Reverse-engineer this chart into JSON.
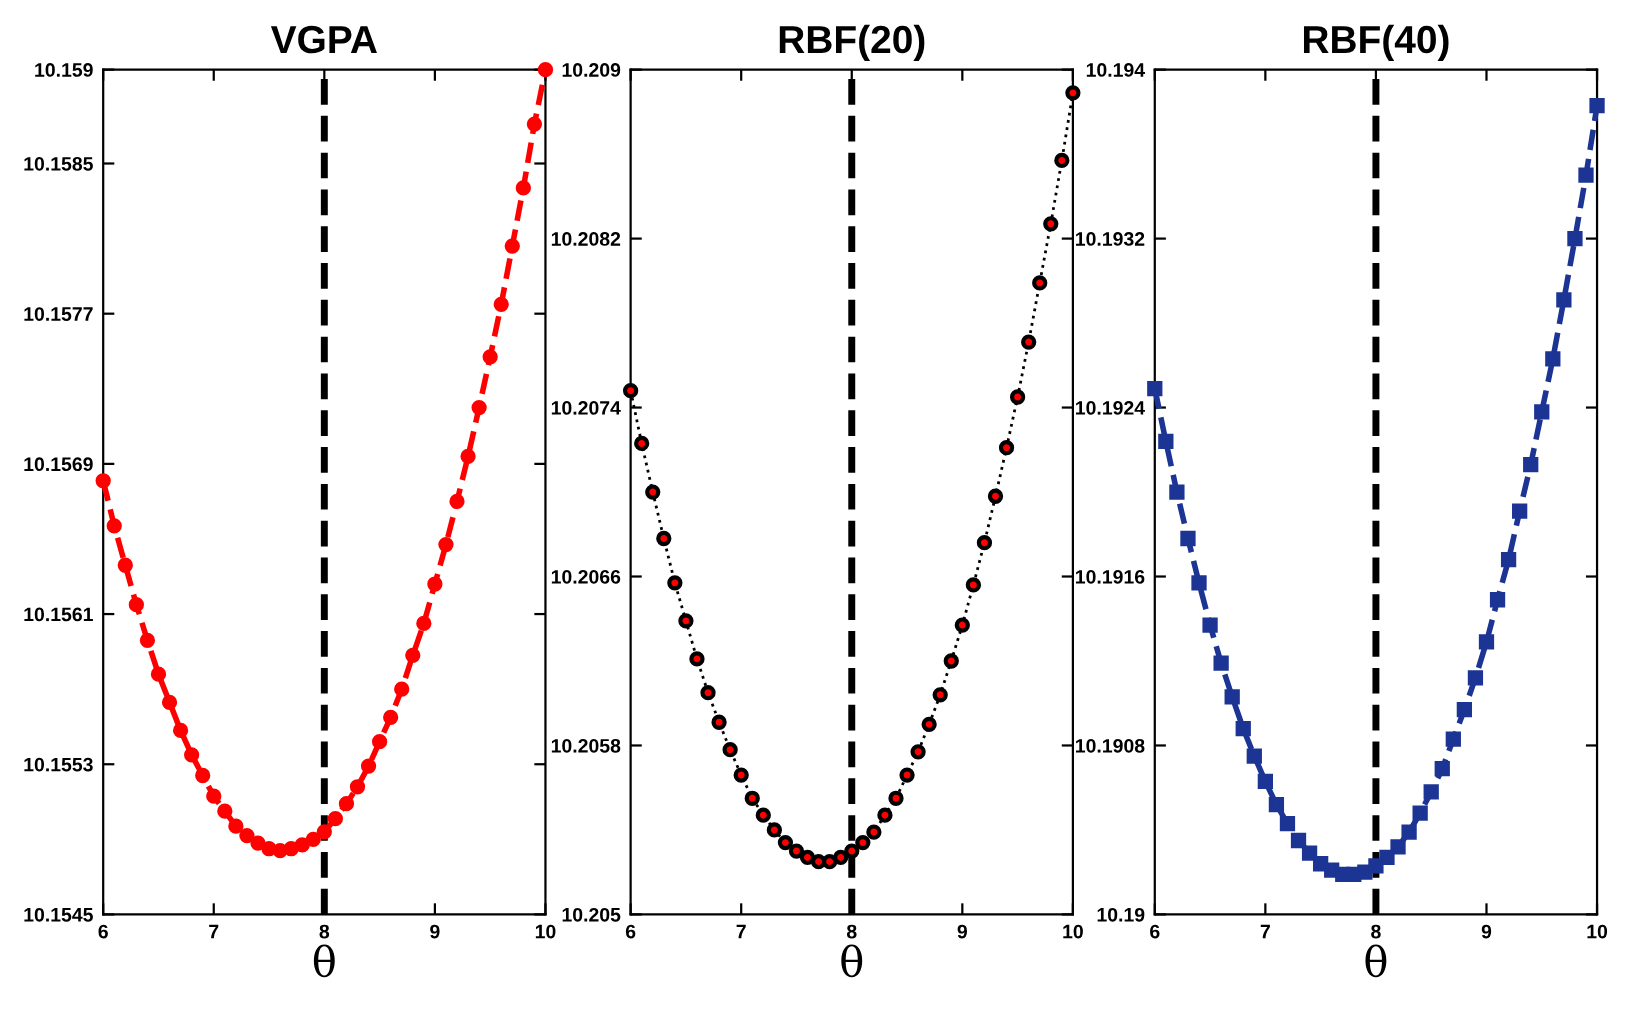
{
  "chart_data": [
    {
      "type": "line",
      "title": "VGPA",
      "xlabel": "θ",
      "x": [
        6.0,
        6.1,
        6.2,
        6.3,
        6.4,
        6.5,
        6.6,
        6.7,
        6.8,
        6.9,
        7.0,
        7.1,
        7.2,
        7.3,
        7.4,
        7.5,
        7.6,
        7.7,
        7.8,
        7.9,
        8.0,
        8.1,
        8.2,
        8.3,
        8.4,
        8.5,
        8.6,
        8.7,
        8.8,
        8.9,
        9.0,
        9.1,
        9.2,
        9.3,
        9.4,
        9.5,
        9.6,
        9.7,
        9.8,
        9.9,
        10.0
      ],
      "series": [
        {
          "color": "#ff0000",
          "marker": "circle",
          "line_style": "dashed",
          "values": [
            10.15681,
            10.15657,
            10.15636,
            10.15615,
            10.15596,
            10.15578,
            10.15563,
            10.15548,
            10.15535,
            10.15524,
            10.15513,
            10.15505,
            10.15497,
            10.15492,
            10.15488,
            10.15485,
            10.15484,
            10.15485,
            10.15487,
            10.1549,
            10.15494,
            10.15501,
            10.15509,
            10.15518,
            10.15529,
            10.15542,
            10.15555,
            10.1557,
            10.15588,
            10.15605,
            10.15626,
            10.15647,
            10.1567,
            10.15694,
            10.1572,
            10.15747,
            10.15775,
            10.15806,
            10.15837,
            10.15871,
            10.159
          ]
        }
      ],
      "xlim": [
        6,
        10
      ],
      "xticks": [
        6,
        7,
        8,
        9,
        10
      ],
      "ylim": [
        10.1545,
        10.159
      ],
      "yticks": [
        10.1545,
        10.1553,
        10.1561,
        10.1569,
        10.1577,
        10.1585,
        10.159
      ],
      "ref_lines": [
        {
          "axis": "x",
          "value": 8,
          "color": "#000000",
          "line_style": "dashed"
        }
      ],
      "grid": false
    },
    {
      "type": "line",
      "title": "RBF(20)",
      "xlabel": "θ",
      "x": [
        6.0,
        6.1,
        6.2,
        6.3,
        6.4,
        6.5,
        6.6,
        6.7,
        6.8,
        6.9,
        7.0,
        7.1,
        7.2,
        7.3,
        7.4,
        7.5,
        7.6,
        7.7,
        7.8,
        7.9,
        8.0,
        8.1,
        8.2,
        8.3,
        8.4,
        8.5,
        8.6,
        8.7,
        8.8,
        8.9,
        9.0,
        9.1,
        9.2,
        9.3,
        9.4,
        9.5,
        9.6,
        9.7,
        9.8,
        9.9,
        10.0
      ],
      "series": [
        {
          "color": "#000000",
          "marker": "circle",
          "line_style": "dotted",
          "values": [
            10.20748,
            10.20723,
            10.207,
            10.20678,
            10.20657,
            10.20639,
            10.20621,
            10.20605,
            10.20591,
            10.20578,
            10.20566,
            10.20555,
            10.20547,
            10.2054,
            10.20534,
            10.2053,
            10.20527,
            10.20525,
            10.20525,
            10.20527,
            10.2053,
            10.20534,
            10.20539,
            10.20547,
            10.20555,
            10.20566,
            10.20577,
            10.2059,
            10.20604,
            10.2062,
            10.20637,
            10.20656,
            10.20676,
            10.20698,
            10.20721,
            10.20745,
            10.20771,
            10.20799,
            10.20827,
            10.20857,
            10.20889
          ]
        }
      ],
      "xlim": [
        6,
        10
      ],
      "xticks": [
        6,
        7,
        8,
        9,
        10
      ],
      "ylim": [
        10.205,
        10.209
      ],
      "yticks": [
        10.205,
        10.2058,
        10.2066,
        10.2074,
        10.2082,
        10.209
      ],
      "ref_lines": [
        {
          "axis": "x",
          "value": 8,
          "color": "#000000",
          "line_style": "dashed"
        }
      ],
      "grid": false
    },
    {
      "type": "line",
      "title": "RBF(40)",
      "xlabel": "θ",
      "x": [
        6.0,
        6.1,
        6.2,
        6.3,
        6.4,
        6.5,
        6.6,
        6.7,
        6.8,
        6.9,
        7.0,
        7.1,
        7.2,
        7.3,
        7.4,
        7.5,
        7.6,
        7.7,
        7.8,
        7.9,
        8.0,
        8.1,
        8.2,
        8.3,
        8.4,
        8.5,
        8.6,
        8.7,
        8.8,
        8.9,
        9.0,
        9.1,
        9.2,
        9.3,
        9.4,
        9.5,
        9.6,
        9.7,
        9.8,
        9.9,
        10.0
      ],
      "series": [
        {
          "color": "#1c3494",
          "marker": "square",
          "line_style": "dashed",
          "values": [
            10.19249,
            10.19224,
            10.192,
            10.19178,
            10.19157,
            10.19137,
            10.19119,
            10.19103,
            10.19088,
            10.19075,
            10.19063,
            10.19052,
            10.19043,
            10.19035,
            10.19029,
            10.19024,
            10.19021,
            10.19019,
            10.19019,
            10.1902,
            10.19023,
            10.19027,
            10.19032,
            10.19039,
            10.19048,
            10.19058,
            10.19069,
            10.19083,
            10.19097,
            10.19112,
            10.19129,
            10.19149,
            10.19168,
            10.19191,
            10.19213,
            10.19238,
            10.19263,
            10.19291,
            10.1932,
            10.1935,
            10.19383
          ]
        }
      ],
      "xlim": [
        6,
        10
      ],
      "xticks": [
        6,
        7,
        8,
        9,
        10
      ],
      "ylim": [
        10.19,
        10.194
      ],
      "yticks": [
        10.19,
        10.1908,
        10.1916,
        10.1924,
        10.1932,
        10.194
      ],
      "ref_lines": [
        {
          "axis": "x",
          "value": 8,
          "color": "#000000",
          "line_style": "dashed"
        }
      ],
      "grid": false
    }
  ]
}
